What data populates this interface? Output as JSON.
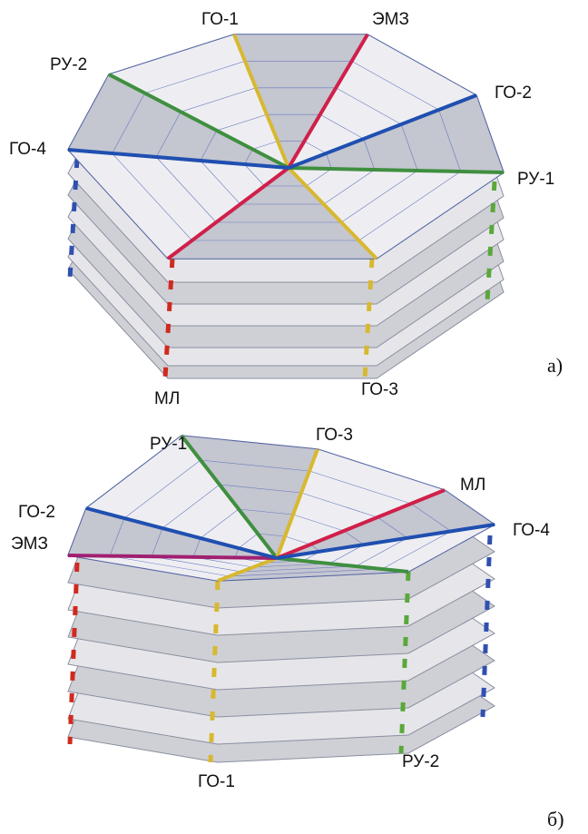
{
  "figures": [
    {
      "panel": "а)",
      "labels": [
        "ГО-1",
        "ЭМЗ",
        "РУ-2",
        "ГО-2",
        "ГО-4",
        "РУ-1",
        "МЛ",
        "ГО-3"
      ]
    },
    {
      "panel": "б)",
      "labels": [
        "РУ-1",
        "ГО-3",
        "МЛ",
        "ГО-2",
        "ГО-4",
        "ЭМЗ",
        "ГО-1",
        "РУ-2"
      ]
    }
  ]
}
